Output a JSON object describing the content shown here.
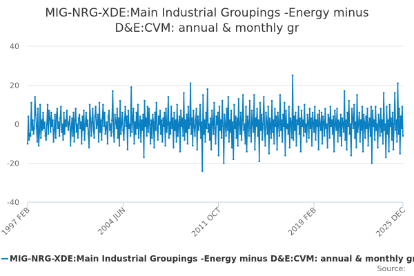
{
  "chart_data": {
    "type": "line",
    "title_lines": [
      "MIG-NRG-XDE:Main Industrial Groupings -Energy minus",
      "D&E:CVM: annual & monthly gr"
    ],
    "legend_label": "MIG-NRG-XDE:Main Industrial Groupings -Energy minus D&E:CVM: annual & monthly gr",
    "source_label": "Source:",
    "x_ticks": [
      "1997 FEB",
      "2004 JUN",
      "2011 OCT",
      "2019 FEB",
      "2025 DEC"
    ],
    "x_range": [
      "1997 FEB",
      "2025 DEC"
    ],
    "y_ticks": [
      40,
      20,
      0,
      -20,
      -40
    ],
    "ylim": [
      -40,
      40
    ],
    "grid": "horizontal",
    "legend_position": "bottom",
    "series": [
      {
        "color": "#0a7fc1",
        "frequency": "monthly",
        "values": [
          -10,
          4,
          -8,
          -5,
          -6,
          11,
          -3,
          2,
          -5,
          -2,
          14,
          5,
          -1,
          -9,
          8,
          -11,
          -4,
          10,
          -7,
          2,
          -3,
          6,
          -2,
          1,
          -6,
          -8,
          0,
          10,
          -5,
          7,
          3,
          -4,
          6,
          -1,
          2,
          -9,
          -3,
          5,
          -7,
          4,
          8,
          -2,
          1,
          -6,
          3,
          9,
          -4,
          0,
          -8,
          6,
          -5,
          2,
          -1,
          7,
          0,
          -3,
          1,
          4,
          -11,
          -2,
          3,
          -6,
          6,
          -9,
          2,
          8,
          -4,
          0,
          -7,
          3,
          5,
          -2,
          1,
          -10,
          4,
          -3,
          7,
          -8,
          0,
          6,
          -1,
          2,
          -5,
          -12,
          10,
          3,
          -6,
          1,
          8,
          -3,
          -7,
          4,
          9,
          -2,
          0,
          5,
          -9,
          11,
          -4,
          2,
          -8,
          3,
          10,
          -1,
          6,
          -5,
          -2,
          1,
          -10,
          4,
          7,
          -3,
          0,
          -6,
          2,
          17,
          -4,
          -9,
          5,
          1,
          -2,
          8,
          -7,
          3,
          -11,
          12,
          -5,
          0,
          6,
          -3,
          -8,
          2,
          9,
          -1,
          4,
          -13,
          7,
          -2,
          0,
          -6,
          19,
          -4,
          3,
          8,
          -10,
          1,
          -5,
          6,
          -2,
          10,
          -7,
          0,
          4,
          -9,
          2,
          -3,
          5,
          -17,
          12,
          -1,
          3,
          -6,
          9,
          -4,
          8,
          0,
          -10,
          2,
          -7,
          5,
          1,
          -12,
          6,
          -3,
          11,
          -2,
          -8,
          4,
          0,
          7,
          -5,
          2,
          -9,
          3,
          -1,
          6,
          -11,
          8,
          -4,
          0,
          14,
          -7,
          1,
          -5,
          9,
          -2,
          3,
          -12,
          6,
          -3,
          2,
          -9,
          10,
          -6,
          0,
          4,
          -14,
          7,
          -1,
          3,
          -6,
          16,
          -8,
          2,
          -4,
          5,
          -10,
          9,
          -2,
          0,
          21,
          -5,
          3,
          -11,
          7,
          -1,
          -6,
          2,
          8,
          -13,
          4,
          -3,
          0,
          10,
          -7,
          1,
          -24,
          15,
          -5,
          2,
          -9,
          6,
          -2,
          18,
          -4,
          0,
          -8,
          3,
          -13,
          7,
          1,
          -5,
          11,
          -2,
          -10,
          4,
          0,
          6,
          -16,
          9,
          -3,
          2,
          -7,
          12,
          -1,
          -20,
          5,
          0,
          -6,
          8,
          -3,
          14,
          -9,
          2,
          -4,
          7,
          -12,
          1,
          -18,
          10,
          -2,
          4,
          -7,
          3,
          -11,
          13,
          0,
          -5,
          6,
          -8,
          2,
          15,
          -3,
          0,
          -10,
          9,
          -14,
          4,
          1,
          -6,
          12,
          -2,
          -9,
          7,
          0,
          -4,
          15,
          -13,
          3,
          -1,
          8,
          -6,
          2,
          -19,
          11,
          -3,
          5,
          -8,
          0,
          14,
          -2,
          -11,
          6,
          1,
          -5,
          9,
          -15,
          3,
          0,
          -7,
          12,
          -4,
          2,
          -10,
          8,
          -1,
          4,
          -13,
          6,
          0,
          -6,
          15,
          -3,
          2,
          -9,
          5,
          -1,
          11,
          -16,
          7,
          -2,
          0,
          -5,
          9,
          -12,
          3,
          1,
          -7,
          25,
          -8,
          4,
          -3,
          6,
          -11,
          2,
          0,
          9,
          -5,
          3,
          -14,
          7,
          -1,
          2,
          -6,
          10,
          -4,
          0,
          -9,
          5,
          1,
          -7,
          8,
          -2,
          3,
          -11,
          6,
          0,
          -4,
          9,
          -8,
          2,
          -1,
          5,
          -13,
          7,
          0,
          -3,
          6,
          -10,
          4,
          1,
          -6,
          8,
          -2,
          0,
          -12,
          5,
          3,
          -7,
          9,
          -1,
          2,
          -5,
          4,
          -14,
          7,
          0,
          -3,
          8,
          -9,
          2,
          1,
          -6,
          5,
          -11,
          3,
          0,
          -4,
          17,
          -8,
          2,
          -13,
          6,
          -1,
          12,
          -5,
          0,
          -16,
          8,
          3,
          -2,
          10,
          -7,
          1,
          -12,
          15,
          -4,
          0,
          6,
          -9,
          2,
          -3,
          9,
          -14,
          5,
          1,
          -7,
          4,
          -2,
          8,
          -11,
          0,
          3,
          -6,
          9,
          -20,
          7,
          -1,
          2,
          -8,
          9,
          -3,
          0,
          -12,
          5,
          1,
          -6,
          8,
          -4,
          2,
          -10,
          16,
          -3,
          0,
          -17,
          9,
          -5,
          2,
          -14,
          10,
          -1,
          3,
          -8,
          6,
          -13,
          0,
          16,
          -3,
          2,
          -9,
          21,
          -5,
          8,
          -15,
          4,
          -2,
          9,
          -6
        ]
      }
    ]
  }
}
